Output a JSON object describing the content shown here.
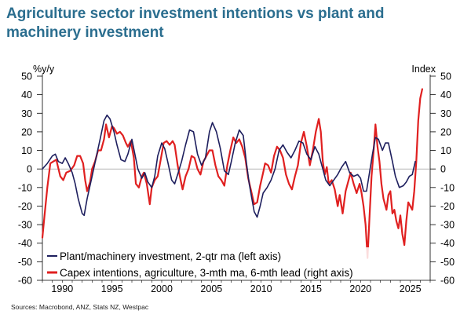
{
  "chart_data": {
    "type": "line",
    "title_lines": [
      "Agriculture sector investment intentions vs plant and",
      "machinery investment"
    ],
    "left_axis_label": "%y/y",
    "right_axis_label": "Index",
    "ylim_left": [
      -60,
      50
    ],
    "ylim_right": [
      -60,
      50
    ],
    "xlim": [
      1988,
      2027
    ],
    "y_ticks": [
      "50",
      "40",
      "30",
      "20",
      "10",
      "0",
      "-10",
      "-20",
      "-30",
      "-40",
      "-50",
      "-60"
    ],
    "x_ticks": [
      "1990",
      "1995",
      "2000",
      "2005",
      "2010",
      "2015",
      "2020",
      "2025"
    ],
    "source": "Sources: Macrobond, ANZ, Stats NZ, Westpac",
    "colors": {
      "plant": "#1e1f5e",
      "capex": "#e02020"
    },
    "series": [
      {
        "name": "Plant/machinery investment, 2-qtr ma (left axis)",
        "axis": "left",
        "points": [
          [
            1988.0,
            0
          ],
          [
            1988.5,
            3
          ],
          [
            1989.0,
            7
          ],
          [
            1989.3,
            8
          ],
          [
            1989.6,
            4
          ],
          [
            1990.0,
            3
          ],
          [
            1990.3,
            6
          ],
          [
            1990.6,
            3
          ],
          [
            1991.0,
            -2
          ],
          [
            1991.3,
            -8
          ],
          [
            1991.6,
            -16
          ],
          [
            1992.0,
            -24
          ],
          [
            1992.2,
            -25
          ],
          [
            1992.5,
            -16
          ],
          [
            1993.0,
            -4
          ],
          [
            1993.4,
            6
          ],
          [
            1993.8,
            16
          ],
          [
            1994.2,
            26
          ],
          [
            1994.5,
            29
          ],
          [
            1994.8,
            27
          ],
          [
            1995.2,
            20
          ],
          [
            1995.5,
            13
          ],
          [
            1995.9,
            5
          ],
          [
            1996.3,
            4
          ],
          [
            1996.6,
            8
          ],
          [
            1997.0,
            16
          ],
          [
            1997.3,
            8
          ],
          [
            1997.6,
            0
          ],
          [
            1998.0,
            -5
          ],
          [
            1998.3,
            -2
          ],
          [
            1998.6,
            -7
          ],
          [
            1999.0,
            -10
          ],
          [
            1999.3,
            -4
          ],
          [
            1999.6,
            7
          ],
          [
            2000.0,
            14
          ],
          [
            2000.3,
            11
          ],
          [
            2000.6,
            4
          ],
          [
            2001.0,
            -6
          ],
          [
            2001.3,
            -8
          ],
          [
            2001.6,
            -3
          ],
          [
            2002.0,
            4
          ],
          [
            2002.4,
            13
          ],
          [
            2002.8,
            21
          ],
          [
            2003.2,
            20
          ],
          [
            2003.6,
            8
          ],
          [
            2004.0,
            2
          ],
          [
            2004.4,
            6
          ],
          [
            2004.8,
            20
          ],
          [
            2005.1,
            25
          ],
          [
            2005.5,
            20
          ],
          [
            2005.9,
            11
          ],
          [
            2006.3,
            -1
          ],
          [
            2006.7,
            -3
          ],
          [
            2007.0,
            4
          ],
          [
            2007.4,
            14
          ],
          [
            2007.8,
            21
          ],
          [
            2008.2,
            18
          ],
          [
            2008.5,
            4
          ],
          [
            2008.8,
            -8
          ],
          [
            2009.0,
            -14
          ],
          [
            2009.3,
            -23
          ],
          [
            2009.6,
            -26
          ],
          [
            2009.9,
            -20
          ],
          [
            2010.2,
            -13
          ],
          [
            2010.6,
            -10
          ],
          [
            2011.0,
            -6
          ],
          [
            2011.4,
            0
          ],
          [
            2011.8,
            10
          ],
          [
            2012.2,
            13
          ],
          [
            2012.6,
            9
          ],
          [
            2013.0,
            6
          ],
          [
            2013.4,
            10
          ],
          [
            2013.8,
            15
          ],
          [
            2014.2,
            14
          ],
          [
            2014.6,
            8
          ],
          [
            2015.0,
            5
          ],
          [
            2015.4,
            12
          ],
          [
            2015.8,
            8
          ],
          [
            2016.2,
            0
          ],
          [
            2016.5,
            -6
          ],
          [
            2016.9,
            -9
          ],
          [
            2017.3,
            -6
          ],
          [
            2017.7,
            -3
          ],
          [
            2018.1,
            1
          ],
          [
            2018.5,
            4
          ],
          [
            2018.9,
            -2
          ],
          [
            2019.3,
            -4
          ],
          [
            2019.7,
            -3
          ],
          [
            2020.0,
            -5
          ],
          [
            2020.3,
            -12
          ],
          [
            2020.6,
            -12
          ],
          [
            2020.9,
            -2
          ],
          [
            2021.2,
            8
          ],
          [
            2021.5,
            17
          ],
          [
            2021.8,
            16
          ],
          [
            2022.2,
            10
          ],
          [
            2022.5,
            14
          ],
          [
            2022.8,
            14
          ],
          [
            2023.2,
            4
          ],
          [
            2023.5,
            -4
          ],
          [
            2023.9,
            -10
          ],
          [
            2024.3,
            -9
          ],
          [
            2024.6,
            -7
          ],
          [
            2024.9,
            -4
          ],
          [
            2025.2,
            -3
          ],
          [
            2025.5,
            4
          ]
        ]
      },
      {
        "name": "Capex intentions, agriculture, 3-mth ma, 6-mth lead (right axis)",
        "axis": "right",
        "points": [
          [
            1988.0,
            -37
          ],
          [
            1988.2,
            -26
          ],
          [
            1988.5,
            -10
          ],
          [
            1988.8,
            3
          ],
          [
            1989.1,
            4
          ],
          [
            1989.4,
            5
          ],
          [
            1989.8,
            -4
          ],
          [
            1990.1,
            -6
          ],
          [
            1990.4,
            -2
          ],
          [
            1990.8,
            -1
          ],
          [
            1991.2,
            2
          ],
          [
            1991.5,
            7
          ],
          [
            1991.8,
            7
          ],
          [
            1992.1,
            3
          ],
          [
            1992.3,
            -6
          ],
          [
            1992.5,
            -12
          ],
          [
            1992.8,
            -7
          ],
          [
            1993.0,
            0
          ],
          [
            1993.3,
            4
          ],
          [
            1993.6,
            10
          ],
          [
            1993.9,
            10
          ],
          [
            1994.2,
            16
          ],
          [
            1994.4,
            24
          ],
          [
            1994.7,
            17
          ],
          [
            1995.0,
            23
          ],
          [
            1995.2,
            22
          ],
          [
            1995.5,
            19
          ],
          [
            1995.8,
            20
          ],
          [
            1996.1,
            18
          ],
          [
            1996.4,
            14
          ],
          [
            1996.6,
            12
          ],
          [
            1996.9,
            15
          ],
          [
            1997.2,
            6
          ],
          [
            1997.4,
            -8
          ],
          [
            1997.7,
            -10
          ],
          [
            1998.0,
            -4
          ],
          [
            1998.2,
            -2
          ],
          [
            1998.5,
            -8
          ],
          [
            1998.8,
            -19
          ],
          [
            1999.0,
            -10
          ],
          [
            1999.3,
            -6
          ],
          [
            1999.6,
            -4
          ],
          [
            1999.9,
            5
          ],
          [
            2000.2,
            14
          ],
          [
            2000.5,
            15
          ],
          [
            2000.8,
            13
          ],
          [
            2001.1,
            15
          ],
          [
            2001.3,
            13
          ],
          [
            2001.6,
            2
          ],
          [
            2001.9,
            -6
          ],
          [
            2002.1,
            -11
          ],
          [
            2002.4,
            -4
          ],
          [
            2002.7,
            0
          ],
          [
            2003.0,
            7
          ],
          [
            2003.3,
            6
          ],
          [
            2003.6,
            0
          ],
          [
            2003.9,
            -3
          ],
          [
            2004.2,
            4
          ],
          [
            2004.5,
            7
          ],
          [
            2004.8,
            10
          ],
          [
            2005.1,
            10
          ],
          [
            2005.4,
            2
          ],
          [
            2005.7,
            -4
          ],
          [
            2006.0,
            -6
          ],
          [
            2006.3,
            -9
          ],
          [
            2006.6,
            2
          ],
          [
            2006.9,
            10
          ],
          [
            2007.2,
            17
          ],
          [
            2007.5,
            14
          ],
          [
            2007.8,
            16
          ],
          [
            2008.1,
            12
          ],
          [
            2008.4,
            6
          ],
          [
            2008.7,
            -5
          ],
          [
            2009.0,
            -12
          ],
          [
            2009.3,
            -19
          ],
          [
            2009.6,
            -18
          ],
          [
            2009.9,
            -9
          ],
          [
            2010.2,
            -2
          ],
          [
            2010.4,
            3
          ],
          [
            2010.7,
            2
          ],
          [
            2011.0,
            -2
          ],
          [
            2011.3,
            7
          ],
          [
            2011.6,
            12
          ],
          [
            2011.9,
            10
          ],
          [
            2012.2,
            6
          ],
          [
            2012.5,
            -3
          ],
          [
            2012.8,
            -8
          ],
          [
            2013.1,
            -11
          ],
          [
            2013.4,
            -4
          ],
          [
            2013.7,
            2
          ],
          [
            2014.0,
            14
          ],
          [
            2014.3,
            20
          ],
          [
            2014.6,
            12
          ],
          [
            2014.9,
            2
          ],
          [
            2015.2,
            10
          ],
          [
            2015.5,
            20
          ],
          [
            2015.8,
            27
          ],
          [
            2016.0,
            20
          ],
          [
            2016.2,
            4
          ],
          [
            2016.4,
            -3
          ],
          [
            2016.6,
            1
          ],
          [
            2016.8,
            -8
          ],
          [
            2017.1,
            -6
          ],
          [
            2017.4,
            -11
          ],
          [
            2017.7,
            -20
          ],
          [
            2017.9,
            -14
          ],
          [
            2018.2,
            -24
          ],
          [
            2018.5,
            -12
          ],
          [
            2018.8,
            -6
          ],
          [
            2019.0,
            -2
          ],
          [
            2019.3,
            -8
          ],
          [
            2019.6,
            -13
          ],
          [
            2019.9,
            -8
          ],
          [
            2020.1,
            -13
          ],
          [
            2020.3,
            -20
          ],
          [
            2020.5,
            -30
          ],
          [
            2020.7,
            -48
          ],
          [
            2020.9,
            -26
          ],
          [
            2021.1,
            -4
          ],
          [
            2021.3,
            9
          ],
          [
            2021.5,
            24
          ],
          [
            2021.7,
            12
          ],
          [
            2021.9,
            4
          ],
          [
            2022.1,
            -8
          ],
          [
            2022.3,
            -16
          ],
          [
            2022.6,
            -22
          ],
          [
            2022.8,
            -14
          ],
          [
            2023.0,
            -12
          ],
          [
            2023.2,
            -24
          ],
          [
            2023.4,
            -22
          ],
          [
            2023.6,
            -28
          ],
          [
            2023.8,
            -32
          ],
          [
            2024.0,
            -25
          ],
          [
            2024.2,
            -35
          ],
          [
            2024.4,
            -41
          ],
          [
            2024.6,
            -28
          ],
          [
            2024.8,
            -18
          ],
          [
            2025.0,
            -20
          ],
          [
            2025.2,
            -22
          ],
          [
            2025.4,
            -12
          ],
          [
            2025.6,
            4
          ],
          [
            2025.8,
            26
          ],
          [
            2026.0,
            38
          ],
          [
            2026.2,
            43
          ]
        ]
      }
    ]
  }
}
